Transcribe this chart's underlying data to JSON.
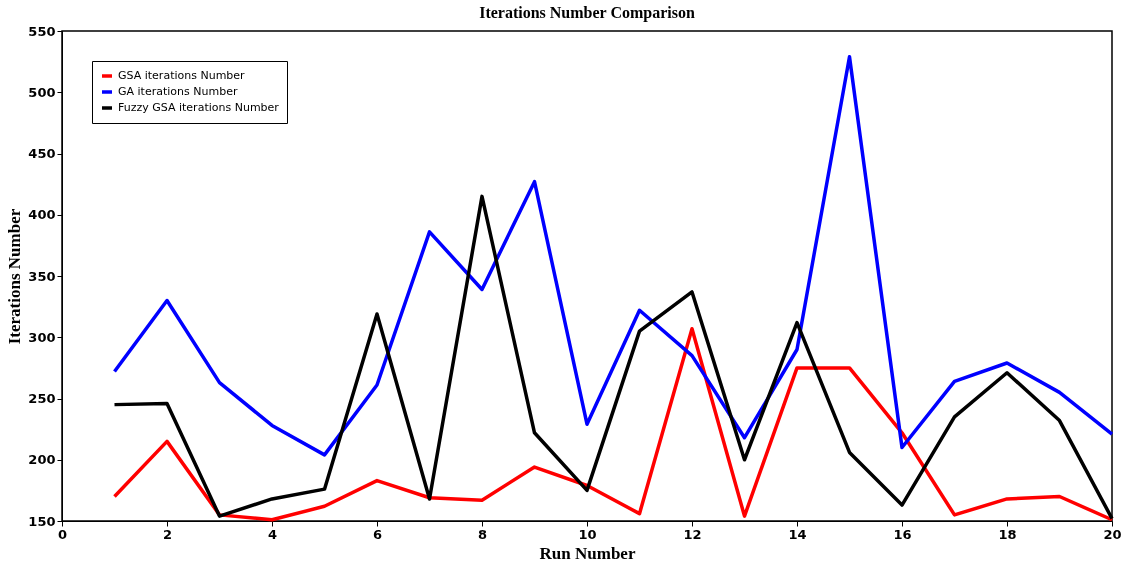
{
  "chart_data": {
    "type": "line",
    "title": "Iterations Number Comparison",
    "xlabel": "Run Number",
    "ylabel": "Iterations Number",
    "x": [
      1,
      2,
      3,
      4,
      5,
      6,
      7,
      8,
      9,
      10,
      11,
      12,
      13,
      14,
      15,
      16,
      17,
      18,
      19,
      20
    ],
    "series": [
      {
        "name": "GSA iterations Number",
        "color": "#ff0000",
        "values": [
          170,
          215,
          155,
          151,
          162,
          183,
          169,
          167,
          194,
          179,
          156,
          307,
          154,
          275,
          275,
          222,
          155,
          168,
          170,
          151
        ]
      },
      {
        "name": "GA iterations Number",
        "color": "#0000ff",
        "values": [
          272,
          330,
          263,
          228,
          204,
          261,
          386,
          339,
          427,
          229,
          322,
          285,
          218,
          290,
          529,
          210,
          264,
          279,
          255,
          221
        ]
      },
      {
        "name": "Fuzzy GSA iterations Number",
        "color": "#000000",
        "values": [
          245,
          246,
          154,
          168,
          176,
          319,
          168,
          415,
          222,
          175,
          305,
          337,
          200,
          312,
          206,
          163,
          235,
          271,
          232,
          152
        ]
      }
    ],
    "xlim": [
      0,
      20
    ],
    "xticks": [
      0,
      2,
      4,
      6,
      8,
      10,
      12,
      14,
      16,
      18,
      20
    ],
    "ylim": [
      150,
      550
    ],
    "yticks": [
      150,
      200,
      250,
      300,
      350,
      400,
      450,
      500,
      550
    ],
    "grid": false,
    "legend": "top left",
    "marker": "none",
    "line_style": "solid"
  }
}
